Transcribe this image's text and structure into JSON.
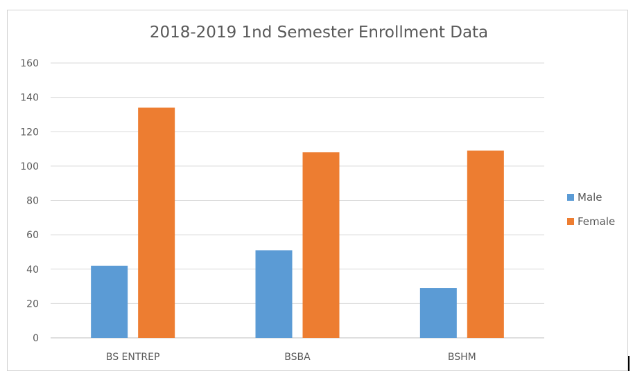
{
  "chart_data": {
    "type": "bar",
    "title": "2018-2019 1nd Semester Enrollment Data",
    "xlabel": "",
    "ylabel": "",
    "categories": [
      "BS ENTREP",
      "BSBA",
      "BSHM"
    ],
    "series": [
      {
        "name": "Male",
        "color": "#5B9BD5",
        "values": [
          42,
          51,
          29
        ]
      },
      {
        "name": "Female",
        "color": "#ED7D31",
        "values": [
          134,
          108,
          109
        ]
      }
    ],
    "ylim": [
      0,
      160
    ],
    "yticks": [
      "0",
      "20",
      "40",
      "60",
      "80",
      "100",
      "120",
      "140",
      "160"
    ],
    "grid": true,
    "legend_position": "right"
  }
}
